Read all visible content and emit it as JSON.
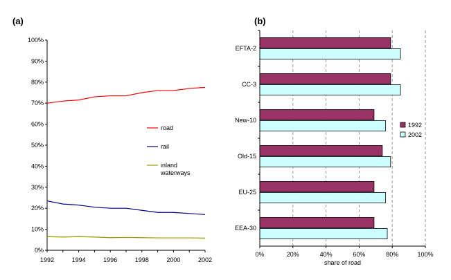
{
  "chart_data": [
    {
      "panel_label": "(a)",
      "type": "line",
      "x": [
        1992,
        1993,
        1994,
        1995,
        1996,
        1997,
        1998,
        1999,
        2000,
        2001,
        2002
      ],
      "x_tick_labels": [
        "1992",
        "1994",
        "1996",
        "1998",
        "2000",
        "2002"
      ],
      "y_tick_labels": [
        "0%",
        "10%",
        "20%",
        "30%",
        "40%",
        "50%",
        "60%",
        "70%",
        "80%",
        "90%",
        "100%"
      ],
      "ylim": [
        0,
        100
      ],
      "xlim": [
        1992,
        2002
      ],
      "grid": false,
      "legend_position": "inside-right",
      "series": [
        {
          "name": "road",
          "color": "#ff0000",
          "values": [
            70,
            71,
            71.5,
            73,
            73.5,
            73.5,
            75,
            76,
            76,
            77,
            77.5
          ]
        },
        {
          "name": "rail",
          "color": "#000080",
          "values": [
            23.5,
            22,
            21.5,
            20.5,
            20,
            20,
            19,
            18,
            18,
            17.5,
            17
          ]
        },
        {
          "name": "inland waterways",
          "name_lines": [
            "inland",
            "waterways"
          ],
          "color": "#999900",
          "values": [
            6.5,
            6.3,
            6.5,
            6.3,
            6.0,
            6.1,
            6.0,
            5.9,
            5.9,
            5.9,
            5.8
          ]
        }
      ]
    },
    {
      "panel_label": "(b)",
      "type": "bar",
      "orientation": "horizontal",
      "categories": [
        "EFTA-2",
        "CC-3",
        "New-10",
        "Old-15",
        "EU-25",
        "EEA-30"
      ],
      "xlabel": "share of road",
      "xlim": [
        0,
        100
      ],
      "x_tick_labels": [
        "0%",
        "20%",
        "40%",
        "60%",
        "80%",
        "100%"
      ],
      "grid": "vertical dashed",
      "legend_position": "right",
      "series": [
        {
          "name": "1992",
          "color": "#993366",
          "values": [
            79,
            79,
            69,
            74,
            69,
            69
          ]
        },
        {
          "name": "2002",
          "color": "#ccffff",
          "values": [
            85,
            85,
            76,
            79,
            76,
            77
          ]
        }
      ]
    }
  ]
}
